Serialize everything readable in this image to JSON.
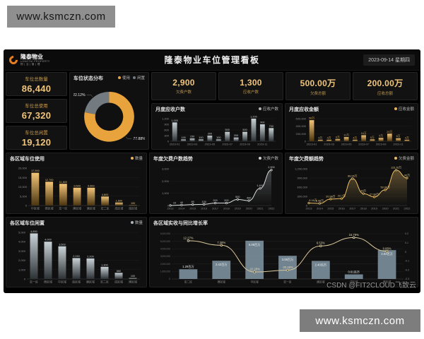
{
  "watermark": {
    "text": "www.ksmczn.com"
  },
  "footer_credit": "CSDN @FIT2CLOUD飞致云",
  "header": {
    "logo_title": "隆泰物业",
    "logo_subtitle": "LONGTAI PROPERTY",
    "logo_tagline": "物 | 业 | 管 | 理",
    "title": "隆泰物业车位管理看板",
    "date": "2023-09-14 星期四"
  },
  "kpi_left": [
    {
      "label": "车位总数量",
      "value": "86,440"
    },
    {
      "label": "车位总使用",
      "value": "67,320"
    },
    {
      "label": "车位总闲置",
      "value": "19,120"
    }
  ],
  "kpi_top": [
    {
      "value": "2,900",
      "label": "欠费户数"
    },
    {
      "value": "1,300",
      "label": "应收户数"
    },
    {
      "value": "500.00万",
      "label": "欠费总额"
    },
    {
      "value": "200.00万",
      "label": "应收总额"
    }
  ],
  "chart_data": [
    {
      "type": "pie",
      "title": "车位状态分布",
      "legend_items": [
        {
          "label": "使用",
          "color": "#e8a33d"
        },
        {
          "label": "闲置",
          "color": "#737a80"
        }
      ],
      "values": [
        77.88,
        22.12
      ],
      "labels": [
        "77.88%",
        "22.12%"
      ]
    },
    {
      "type": "bar",
      "title": "月度应收户数",
      "legend": "应收户数",
      "legend_color": "#aeb6ba",
      "categories": [
        "2023-01",
        "2023-02",
        "2023-03",
        "2023-04",
        "2023-05",
        "2023-06",
        "2023-07",
        "2023-08",
        "2023-09",
        "2023-10",
        "2023-11",
        "2023-12"
      ],
      "xtick_labels": [
        "2023-01",
        "",
        "2023-03",
        "",
        "2023-05",
        "",
        "2023-07",
        "",
        "2023-09",
        "",
        "2023-11",
        ""
      ],
      "values": [
        1000,
        100,
        150,
        100,
        300,
        100,
        500,
        200,
        500,
        1200,
        900,
        700
      ],
      "labels": [
        "1,000",
        "100",
        "150",
        "100",
        "300",
        "100",
        "500",
        "200",
        "500",
        "1,200",
        "900",
        "700"
      ],
      "ylim": [
        0,
        1200
      ],
      "yticks": [
        0,
        300,
        600,
        900,
        1200
      ],
      "ytick_labels": [
        "0",
        "300",
        "600",
        "900",
        "1,200"
      ],
      "bar_colors": [
        "#c9d2d6",
        "#2c3134"
      ],
      "label_color": "#c9cdcf",
      "ml": 21
    },
    {
      "type": "bar",
      "title": "月度应收金额",
      "legend": "应收金额",
      "legend_color": "#e8b35c",
      "categories": [
        "2023-01",
        "2023-02",
        "2023-03",
        "2023-04",
        "2023-05",
        "2023-06",
        "2023-07",
        "2023-08",
        "2023-09",
        "2023-10",
        "2023-11",
        "2023-12"
      ],
      "xtick_labels": [
        "2023-01",
        "",
        "2023-03",
        "",
        "2023-05",
        "",
        "2023-07",
        "",
        "2023-09",
        "",
        "2023-11",
        ""
      ],
      "values": [
        560000,
        40000,
        40000,
        60000,
        110000,
        40000,
        160000,
        50000,
        90000,
        200000,
        80000,
        40000
      ],
      "labels": [
        "56万",
        "4万",
        "4万",
        "6万",
        "11万",
        "4万",
        "16万",
        "5万",
        "9万",
        "20万",
        "8万",
        "4万"
      ],
      "ylim": [
        0,
        600000
      ],
      "yticks": [
        0,
        200000,
        400000,
        600000
      ],
      "ytick_labels": [
        "0",
        "200,000",
        "400,000",
        "600,000"
      ],
      "bar_colors": [
        "#f3c577",
        "#4a3410"
      ],
      "label_color": "#d9ab5e",
      "ml": 26
    },
    {
      "type": "bar",
      "title": "各区域车位使用",
      "legend": "数量",
      "legend_color": "#e8b35c",
      "categories": [
        "中区域",
        "德区域",
        "宏一区",
        "建区域",
        "唐区域",
        "宏二区",
        "成区域",
        "南区域"
      ],
      "values": [
        17500,
        12700,
        11600,
        9500,
        9500,
        4800,
        1600,
        100
      ],
      "labels": [
        "17,500",
        "12,700",
        "11,600",
        "9,500",
        "9,500",
        "4,800",
        "1,600",
        "100"
      ],
      "ylim": [
        0,
        20000
      ],
      "yticks": [
        0,
        5000,
        10000,
        15000,
        20000
      ],
      "ytick_labels": [
        "0",
        "5,000",
        "10,000",
        "15,000",
        "20,000"
      ],
      "bar_colors": [
        "#f3c577",
        "#4a3410"
      ],
      "label_color": "#e4c183",
      "ml": 26
    },
    {
      "type": "line",
      "title": "年度欠费户数趋势",
      "legend": "欠费户数",
      "legend_color": "#cfd3d5",
      "categories": [
        "2013",
        "2014",
        "2015",
        "2016",
        "2017",
        "2018",
        "2019",
        "2020",
        "2021",
        "2022"
      ],
      "values": [
        10,
        40,
        80,
        100,
        200,
        200,
        500,
        400,
        1400,
        2900
      ],
      "labels": [
        "10",
        "40",
        "80",
        "100",
        "200",
        "200",
        "500",
        "400",
        "1,400",
        "2,900"
      ],
      "ylim": [
        0,
        3000
      ],
      "yticks": [
        0,
        1000,
        2000,
        3000
      ],
      "ytick_labels": [
        "0",
        "1,000",
        "2,000",
        "3,000"
      ],
      "line_color": "#d8dbdd",
      "area_colors": [
        "rgba(190,195,199,0.30)",
        "rgba(190,195,199,0)"
      ],
      "label_color": "#cfd3d5",
      "ml": 24
    },
    {
      "type": "line",
      "title": "年度欠费额趋势",
      "legend": "欠费金额",
      "legend_color": "#e9bc63",
      "categories": [
        "2013",
        "2014",
        "2015",
        "2016",
        "2017",
        "2018",
        "2019",
        "2020",
        "2021",
        "2022"
      ],
      "values": [
        81600,
        69800,
        209800,
        227000,
        880600,
        390000,
        279800,
        509800,
        1157600,
        900000
      ],
      "labels": [
        "8.16万",
        "6.98万",
        "20.98万",
        "22.7万",
        "88.06万",
        "39万",
        "27.98万",
        "50.98万",
        "115.76万",
        "90万"
      ],
      "ylim": [
        0,
        1200000
      ],
      "yticks": [
        0,
        300000,
        600000,
        900000,
        1200000
      ],
      "ytick_labels": [
        "0",
        "300,000",
        "600,000",
        "900,000",
        "1,200,000"
      ],
      "line_color": "#e9bc63",
      "area_colors": [
        "rgba(233,188,99,0.35)",
        "rgba(233,188,99,0)"
      ],
      "label_color": "#e6c684",
      "ml": 28
    },
    {
      "type": "bar",
      "title": "各区域车位闲置",
      "legend": "数量",
      "legend_color": "#aeb6ba",
      "categories": [
        "宏一区",
        "德区域",
        "中区域",
        "南区域",
        "唐区域",
        "宏二区",
        "成区域",
        "建区域"
      ],
      "values": [
        4890,
        4000,
        3500,
        2240,
        2200,
        1300,
        660,
        100
      ],
      "labels": [
        "4,890",
        "4,000",
        "3,500",
        "2,240",
        "2,200",
        "1,300",
        "660",
        "100"
      ],
      "ylim": [
        0,
        5000
      ],
      "yticks": [
        0,
        1000,
        2000,
        3000,
        4000,
        5000
      ],
      "ytick_labels": [
        "0",
        "1,000",
        "2,000",
        "3,000",
        "4,000",
        "5,000"
      ],
      "bar_colors": [
        "#c9d2d6",
        "#2c3134"
      ],
      "label_color": "#ccd0d2",
      "ml": 24
    },
    {
      "type": "combo",
      "title": "各区域实收与同比增长率",
      "categories": [
        "宏二区",
        "德区域",
        "中区域",
        "宏一区",
        "唐区域",
        "成区域",
        "建区域"
      ],
      "bar_values": [
        1290000,
        2420000,
        5080000,
        3080000,
        2400000,
        610000,
        3830000
      ],
      "bar_labels": [
        "1.29百万",
        "2.42百万",
        "5.08百万",
        "3.08百万",
        "2.40百万",
        "0.61百万",
        "3.83百万"
      ],
      "bar_ylim": [
        0,
        6000000
      ],
      "bar_yticks": [
        0,
        1000000,
        2000000,
        3000000,
        4000000,
        5000000,
        6000000
      ],
      "bar_ytick_labels": [
        "0",
        "1,000,000",
        "2,000,000",
        "3,000,000",
        "4,000,000",
        "5,000,000",
        "6,000,000"
      ],
      "line_values": [
        12.27,
        7.28,
        -22.28,
        -20.28,
        6.53,
        15.79,
        0.66
      ],
      "line_labels": [
        "12.27%",
        "7.28%",
        "-22.28%",
        "-20.28%",
        "6.53%",
        "15.79%",
        "0.66%"
      ],
      "line_ylim": [
        -30,
        20
      ],
      "line_yticks": [
        20,
        10,
        0,
        -10,
        -20,
        -30
      ],
      "line_ytick_labels": [
        "0.2",
        "0.1",
        "0",
        "-0.1",
        "-0.2",
        "-0.3"
      ],
      "bar_color": "#7e93a0",
      "bar_label_color": "#eef2f4",
      "line_color": "#d9c89b",
      "line_label_color": "#e0d6b4"
    }
  ]
}
